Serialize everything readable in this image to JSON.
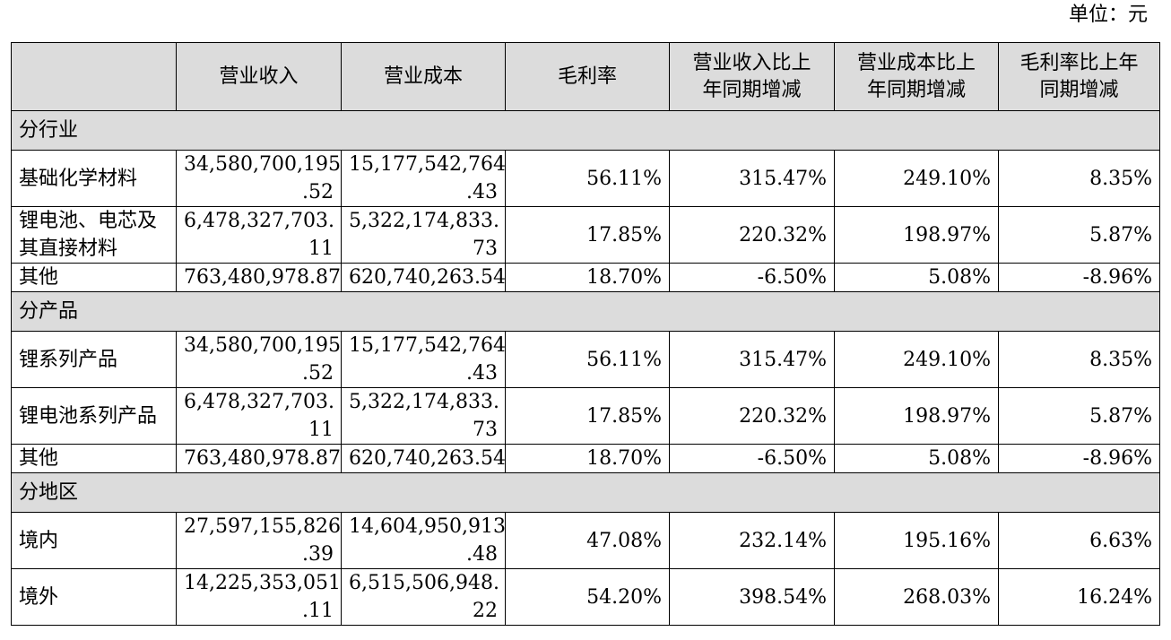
{
  "unit_label": "单位：元",
  "headers": [
    "",
    "营业收入",
    "营业成本",
    "毛利率",
    "营业收入比上\n年同期增减",
    "营业成本比上\n年同期增减",
    "毛利率比上年\n同期增减"
  ],
  "sections": [
    {
      "title": "分行业",
      "rows": [
        {
          "name": "基础化学材料",
          "revenue": [
            "34,580,700,195",
            ".52"
          ],
          "cost": [
            "15,177,542,764",
            ".43"
          ],
          "margin": "56.11%",
          "rev_change": "315.47%",
          "cost_change": "249.10%",
          "margin_change": "8.35%"
        },
        {
          "name": "锂电池、电芯及其直接材料",
          "revenue": [
            "6,478,327,703.",
            "11"
          ],
          "cost": [
            "5,322,174,833.",
            "73"
          ],
          "margin": "17.85%",
          "rev_change": "220.32%",
          "cost_change": "198.97%",
          "margin_change": "5.87%"
        },
        {
          "name": "其他",
          "revenue": [
            "763,480,978.87"
          ],
          "cost": [
            "620,740,263.54"
          ],
          "margin": "18.70%",
          "rev_change": "-6.50%",
          "cost_change": "5.08%",
          "margin_change": "-8.96%"
        }
      ]
    },
    {
      "title": "分产品",
      "rows": [
        {
          "name": "锂系列产品",
          "revenue": [
            "34,580,700,195",
            ".52"
          ],
          "cost": [
            "15,177,542,764",
            ".43"
          ],
          "margin": "56.11%",
          "rev_change": "315.47%",
          "cost_change": "249.10%",
          "margin_change": "8.35%"
        },
        {
          "name": "锂电池系列产品",
          "revenue": [
            "6,478,327,703.",
            "11"
          ],
          "cost": [
            "5,322,174,833.",
            "73"
          ],
          "margin": "17.85%",
          "rev_change": "220.32%",
          "cost_change": "198.97%",
          "margin_change": "5.87%"
        },
        {
          "name": "其他",
          "revenue": [
            "763,480,978.87"
          ],
          "cost": [
            "620,740,263.54"
          ],
          "margin": "18.70%",
          "rev_change": "-6.50%",
          "cost_change": "5.08%",
          "margin_change": "-8.96%"
        }
      ]
    },
    {
      "title": "分地区",
      "rows": [
        {
          "name": "境内",
          "revenue": [
            "27,597,155,826",
            ".39"
          ],
          "cost": [
            "14,604,950,913",
            ".48"
          ],
          "margin": "47.08%",
          "rev_change": "232.14%",
          "cost_change": "195.16%",
          "margin_change": "6.63%"
        },
        {
          "name": "境外",
          "revenue": [
            "14,225,353,051",
            ".11"
          ],
          "cost": [
            "6,515,506,948.",
            "22"
          ],
          "margin": "54.20%",
          "rev_change": "398.54%",
          "cost_change": "268.03%",
          "margin_change": "16.24%"
        }
      ]
    }
  ]
}
